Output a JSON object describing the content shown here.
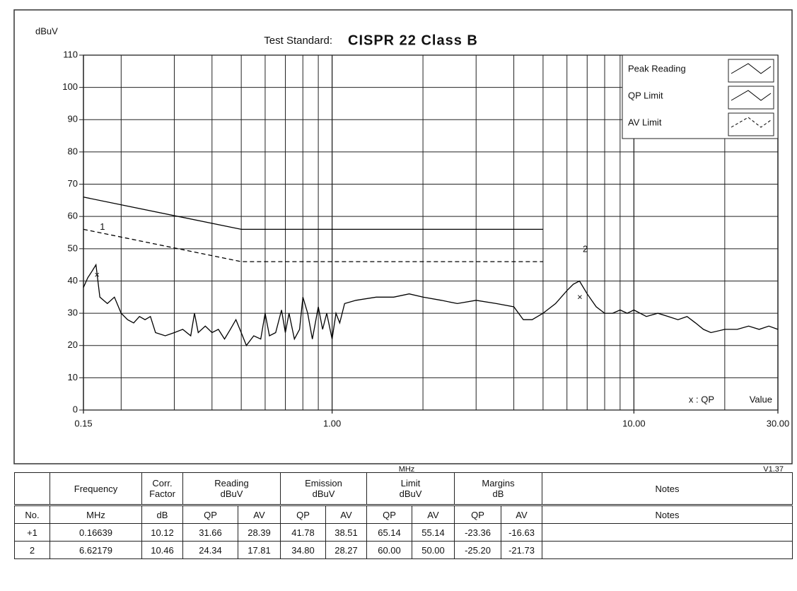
{
  "chart_data": {
    "type": "line",
    "title": "Test Standard:",
    "subtitle": "CISPR 22 Class B",
    "y_label": "dBuV",
    "x_label": "MHz",
    "version": "V1.37",
    "annotations": [
      "x : QP",
      "Value"
    ],
    "xscale": "log",
    "xlim": [
      0.15,
      30
    ],
    "ylim": [
      0,
      110
    ],
    "xticks": [
      {
        "value": 0.15,
        "label": "0.15"
      },
      {
        "value": 1,
        "label": "1.00"
      },
      {
        "value": 10,
        "label": "10.00"
      },
      {
        "value": 30,
        "label": "30.00"
      }
    ],
    "yticks": [
      0,
      10,
      20,
      30,
      40,
      50,
      60,
      70,
      80,
      90,
      100,
      110
    ],
    "x_gridlines": [
      0.2,
      0.3,
      0.4,
      0.5,
      0.6,
      0.7,
      0.8,
      0.9,
      2,
      3,
      4,
      5,
      6,
      7,
      8,
      9,
      20
    ],
    "grid": true,
    "legend": "upper right",
    "series": [
      {
        "name": "Peak Reading",
        "color": "#000000",
        "linestyle": "solid",
        "x": [
          0.15,
          0.155,
          0.16,
          0.165,
          0.17,
          0.18,
          0.19,
          0.2,
          0.21,
          0.22,
          0.23,
          0.24,
          0.25,
          0.26,
          0.28,
          0.3,
          0.32,
          0.34,
          0.35,
          0.36,
          0.38,
          0.4,
          0.42,
          0.44,
          0.46,
          0.48,
          0.5,
          0.52,
          0.55,
          0.58,
          0.6,
          0.62,
          0.65,
          0.68,
          0.7,
          0.72,
          0.75,
          0.78,
          0.8,
          0.83,
          0.86,
          0.9,
          0.93,
          0.96,
          1.0,
          1.03,
          1.06,
          1.1,
          1.2,
          1.4,
          1.6,
          1.8,
          2.0,
          2.3,
          2.6,
          3.0,
          3.5,
          4.0,
          4.3,
          4.6,
          5.0,
          5.5,
          6.0,
          6.3,
          6.6,
          7.0,
          7.5,
          8.0,
          8.5,
          9.0,
          9.5,
          10,
          11,
          12,
          13,
          14,
          15,
          16,
          17,
          18,
          20,
          22,
          24,
          26,
          28,
          30
        ],
        "values": [
          38,
          41,
          43,
          45,
          35,
          33,
          35,
          30,
          28,
          27,
          29,
          28,
          29,
          24,
          23,
          24,
          25,
          23,
          30,
          24,
          26,
          24,
          25,
          22,
          25,
          28,
          24,
          20,
          23,
          22,
          30,
          23,
          24,
          31,
          24,
          30,
          22,
          25,
          35,
          30,
          22,
          32,
          25,
          30,
          22,
          30,
          27,
          33,
          34,
          35,
          35,
          36,
          35,
          34,
          33,
          34,
          33,
          32,
          28,
          28,
          30,
          33,
          37,
          39,
          40,
          36,
          32,
          30,
          30,
          31,
          30,
          31,
          29,
          30,
          29,
          28,
          29,
          27,
          25,
          24,
          25,
          25,
          26,
          25,
          26,
          25
        ]
      },
      {
        "name": "QP Limit",
        "color": "#000000",
        "linestyle": "solid",
        "x": [
          0.15,
          0.5,
          5
        ],
        "values": [
          66,
          56,
          56
        ]
      },
      {
        "name": "AV Limit",
        "color": "#000000",
        "linestyle": "dashed",
        "x": [
          0.15,
          0.5,
          5
        ],
        "values": [
          56,
          46,
          46
        ]
      }
    ],
    "markers": {
      "x": [
        0.16639,
        6.62179
      ],
      "values": [
        41.78,
        34.8
      ],
      "labels": [
        "1",
        "2"
      ]
    }
  },
  "table": {
    "header_top": [
      "Frequency",
      "Corr.\nFactor",
      "Reading\ndBuV",
      "Emission\ndBuV",
      "Limit\ndBuV",
      "Margins\ndB",
      "Notes"
    ],
    "header": [
      "No.",
      "MHz",
      "dB",
      "QP",
      "AV",
      "QP",
      "AV",
      "QP",
      "AV",
      "QP",
      "AV",
      "Notes"
    ],
    "rows": [
      [
        "+1",
        "0.16639",
        "10.12",
        "31.66",
        "28.39",
        "41.78",
        "38.51",
        "65.14",
        "55.14",
        "-23.36",
        "-16.63"
      ],
      [
        "2",
        "6.62179",
        "10.46",
        "24.34",
        "17.81",
        "34.80",
        "28.27",
        "60.00",
        "50.00",
        "-25.20",
        "-21.73"
      ]
    ]
  }
}
